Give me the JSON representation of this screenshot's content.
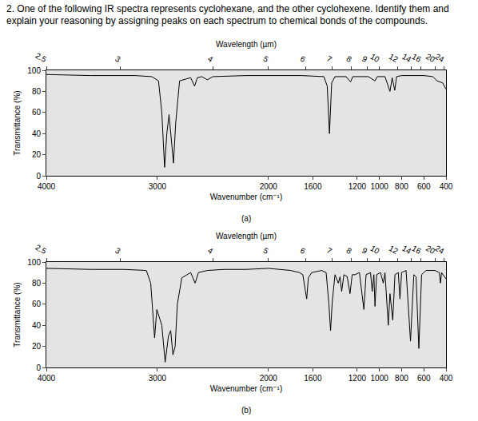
{
  "question": "2. One of the following IR spectra represents cyclohexane, and the other cyclohexene. Identify them and explain your reasoning by assigning peaks on each spectrum to chemical bonds of the compounds.",
  "chart_data": [
    {
      "type": "line",
      "title": "(a)",
      "x_label": "Wavenumber (cm⁻¹)",
      "y_label": "Transmittance (%)",
      "x2_label": "Wavelength (µm)",
      "xlim": [
        4000,
        400
      ],
      "xticks": [
        4000,
        3000,
        2000,
        1600,
        1200,
        1000,
        800,
        600,
        400
      ],
      "ylim": [
        0,
        100
      ],
      "yticks": [
        0,
        20,
        40,
        60,
        80,
        100
      ],
      "x2ticks": [
        {
          "value": 4000,
          "label": "2.5"
        },
        {
          "value": 3333.3,
          "label": "3"
        },
        {
          "value": 2500,
          "label": "4"
        },
        {
          "value": 2000,
          "label": "5"
        },
        {
          "value": 1666.7,
          "label": "6"
        },
        {
          "value": 1428.6,
          "label": "7"
        },
        {
          "value": 1250,
          "label": "8"
        },
        {
          "value": 1111.1,
          "label": "9"
        },
        {
          "value": 1000,
          "label": "10"
        },
        {
          "value": 833.3,
          "label": "12"
        },
        {
          "value": 714.3,
          "label": "14"
        },
        {
          "value": 625,
          "label": "16"
        },
        {
          "value": 500,
          "label": "20"
        },
        {
          "value": 416.7,
          "label": "24"
        }
      ],
      "grid": false,
      "x": [
        4000,
        3600,
        3200,
        3050,
        2990,
        2960,
        2935,
        2915,
        2895,
        2875,
        2855,
        2835,
        2800,
        2700,
        2665,
        2640,
        2600,
        2550,
        2500,
        2200,
        2000,
        1900,
        1700,
        1500,
        1470,
        1450,
        1430,
        1400,
        1300,
        1260,
        1240,
        1100,
        1040,
        1020,
        950,
        905,
        885,
        862,
        845,
        800,
        700,
        600,
        520,
        480,
        430,
        400
      ],
      "series": [
        {
          "color": "#000000",
          "values": [
            96,
            95,
            95,
            94,
            90,
            60,
            8,
            40,
            58,
            35,
            12,
            50,
            90,
            93,
            85,
            93,
            94,
            91,
            94,
            95,
            95,
            95,
            95,
            94,
            85,
            40,
            88,
            94,
            94,
            89,
            94,
            94,
            90,
            94,
            94,
            80,
            93,
            81,
            94,
            95,
            95,
            95,
            94,
            90,
            88,
            82
          ]
        }
      ]
    },
    {
      "type": "line",
      "title": "(b)",
      "x_label": "Wavenumber (cm⁻¹)",
      "y_label": "Transmittance (%)",
      "x2_label": "Wavelength (µm)",
      "xlim": [
        4000,
        400
      ],
      "xticks": [
        4000,
        3000,
        2000,
        1600,
        1200,
        1000,
        800,
        600,
        400
      ],
      "ylim": [
        0,
        100
      ],
      "yticks": [
        0,
        20,
        40,
        60,
        80,
        100
      ],
      "x2ticks": [
        {
          "value": 4000,
          "label": "2.5"
        },
        {
          "value": 3333.3,
          "label": "3"
        },
        {
          "value": 2500,
          "label": "4"
        },
        {
          "value": 2000,
          "label": "5"
        },
        {
          "value": 1666.7,
          "label": "6"
        },
        {
          "value": 1428.6,
          "label": "7"
        },
        {
          "value": 1250,
          "label": "8"
        },
        {
          "value": 1111.1,
          "label": "9"
        },
        {
          "value": 1000,
          "label": "10"
        },
        {
          "value": 833.3,
          "label": "12"
        },
        {
          "value": 714.3,
          "label": "14"
        },
        {
          "value": 625,
          "label": "16"
        },
        {
          "value": 500,
          "label": "20"
        },
        {
          "value": 416.7,
          "label": "24"
        }
      ],
      "grid": false,
      "x": [
        4000,
        3600,
        3300,
        3100,
        3060,
        3025,
        3005,
        2990,
        2960,
        2930,
        2900,
        2880,
        2860,
        2840,
        2820,
        2780,
        2700,
        2660,
        2630,
        2550,
        2400,
        2200,
        2000,
        1900,
        1800,
        1720,
        1690,
        1655,
        1640,
        1610,
        1520,
        1480,
        1455,
        1440,
        1425,
        1400,
        1370,
        1355,
        1340,
        1320,
        1290,
        1265,
        1245,
        1220,
        1180,
        1140,
        1120,
        1080,
        1065,
        1050,
        1040,
        1025,
        990,
        965,
        950,
        920,
        905,
        880,
        860,
        830,
        815,
        800,
        760,
        720,
        690,
        670,
        645,
        620,
        580,
        500,
        460,
        450,
        440,
        400
      ],
      "series": [
        {
          "color": "#000000",
          "values": [
            94,
            93,
            93,
            92,
            80,
            28,
            55,
            50,
            40,
            5,
            30,
            35,
            12,
            20,
            60,
            85,
            90,
            80,
            90,
            92,
            93,
            93,
            94,
            93,
            92,
            90,
            88,
            65,
            85,
            90,
            92,
            90,
            60,
            35,
            62,
            88,
            80,
            86,
            72,
            88,
            86,
            70,
            88,
            88,
            90,
            55,
            88,
            90,
            72,
            88,
            58,
            88,
            90,
            80,
            90,
            40,
            70,
            45,
            88,
            90,
            65,
            90,
            92,
            25,
            88,
            86,
            18,
            88,
            92,
            92,
            90,
            80,
            90,
            84
          ]
        }
      ]
    }
  ]
}
